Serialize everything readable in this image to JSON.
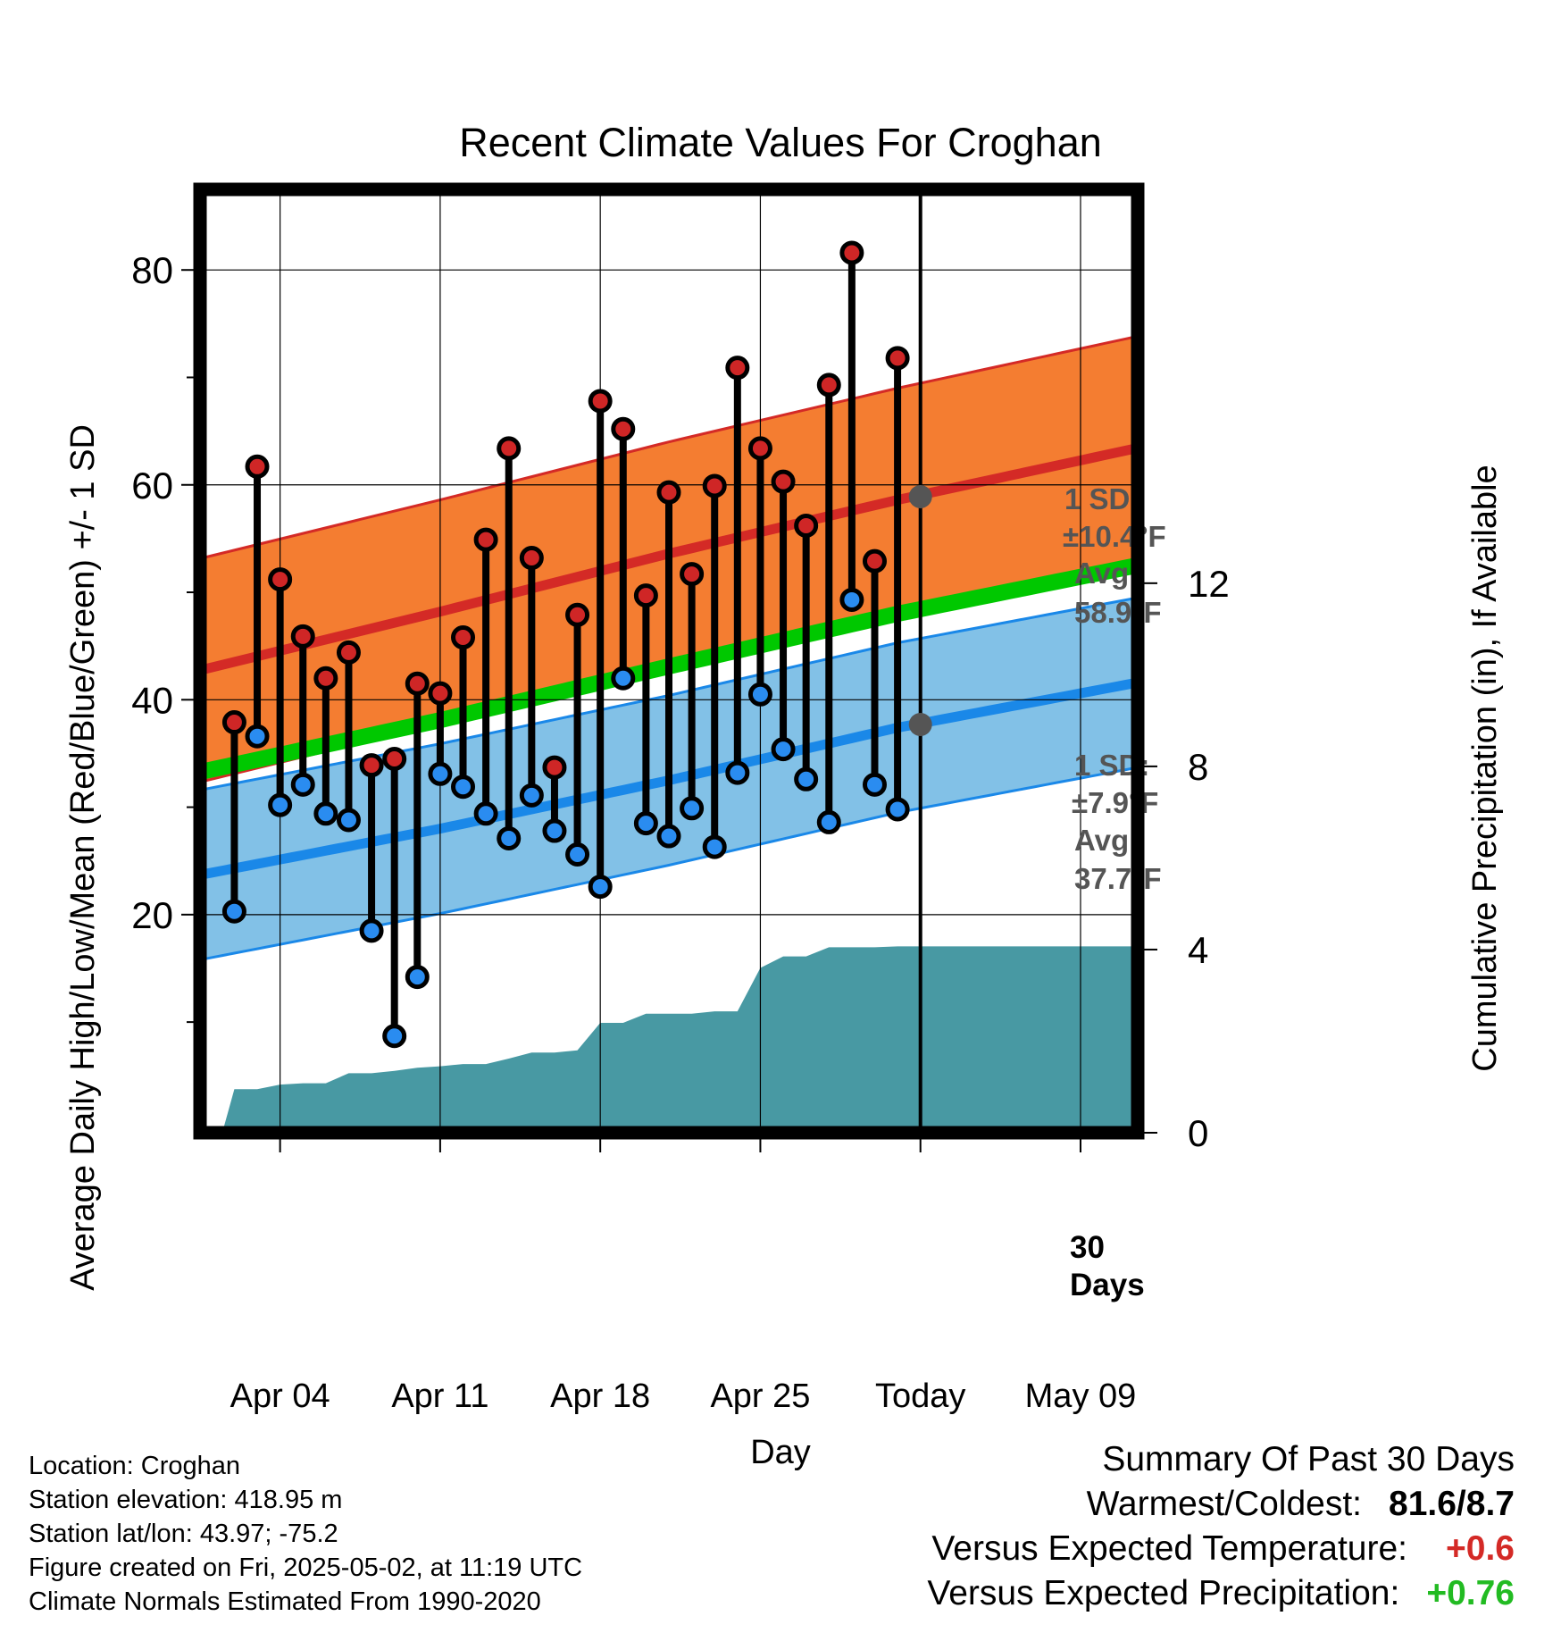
{
  "chart_data": {
    "type": "line",
    "title": "Recent Climate Values For Croghan",
    "xlabel": "Day",
    "ylabel_left": "Average Daily High/Low/Mean (Red/Blue/Green) +/- 1 SD",
    "ylabel_right": "Cumulative Precipitation (in), If Available",
    "x_tick_labels": [
      "Apr 04",
      "Apr 11",
      "Apr 18",
      "Apr 25",
      "Today",
      "May 09"
    ],
    "x_tick_days": [
      "2025-04-04",
      "2025-04-11",
      "2025-04-18",
      "2025-04-25",
      "2025-05-02",
      "2025-05-09"
    ],
    "x_range": [
      "2025-03-31T12:00",
      "2025-05-11T12:00"
    ],
    "today": "2025-05-02",
    "ylim_left": [
      -0.3,
      87.5
    ],
    "yticks_left": [
      20,
      40,
      60,
      80
    ],
    "ylim_right": [
      0,
      20.6
    ],
    "yticks_right": [
      0,
      4,
      8,
      12
    ],
    "grid": true,
    "dates": [
      "2025-04-02",
      "2025-04-03",
      "2025-04-04",
      "2025-04-05",
      "2025-04-06",
      "2025-04-07",
      "2025-04-08",
      "2025-04-09",
      "2025-04-10",
      "2025-04-11",
      "2025-04-12",
      "2025-04-13",
      "2025-04-14",
      "2025-04-15",
      "2025-04-16",
      "2025-04-17",
      "2025-04-18",
      "2025-04-19",
      "2025-04-20",
      "2025-04-21",
      "2025-04-22",
      "2025-04-23",
      "2025-04-24",
      "2025-04-25",
      "2025-04-26",
      "2025-04-27",
      "2025-04-28",
      "2025-04-29",
      "2025-04-30",
      "2025-05-01"
    ],
    "daily_high": [
      37.9,
      61.7,
      51.2,
      45.9,
      42.0,
      44.4,
      33.9,
      34.5,
      41.5,
      40.6,
      45.8,
      54.9,
      63.4,
      53.2,
      33.7,
      47.9,
      67.8,
      65.2,
      49.7,
      59.3,
      51.7,
      59.9,
      70.9,
      63.4,
      60.3,
      56.2,
      69.3,
      81.6,
      52.9,
      71.8
    ],
    "daily_low": [
      20.3,
      36.6,
      30.2,
      32.1,
      29.4,
      28.8,
      18.5,
      8.7,
      14.2,
      33.1,
      31.9,
      29.4,
      27.1,
      31.1,
      27.8,
      25.6,
      22.6,
      42.0,
      28.5,
      27.3,
      29.9,
      26.3,
      33.2,
      40.5,
      35.4,
      32.6,
      28.6,
      49.3,
      32.1,
      29.8
    ],
    "normals_dates": [
      "2025-04-01",
      "2025-04-11",
      "2025-04-21",
      "2025-05-01",
      "2025-05-11"
    ],
    "normal_high": [
      43.0,
      48.2,
      53.6,
      58.6,
      63.2
    ],
    "normal_high_sd": 10.4,
    "normal_low": [
      23.9,
      28.0,
      32.5,
      37.4,
      41.4
    ],
    "normal_low_sd": 7.9,
    "normal_mean": [
      33.5,
      38.1,
      43.1,
      48.0,
      52.3
    ],
    "precip_dates": [
      "2025-03-31T12:00",
      "2025-04-01T12:00",
      "2025-04-02",
      "2025-04-03",
      "2025-04-04",
      "2025-04-05",
      "2025-04-06",
      "2025-04-07",
      "2025-04-08",
      "2025-04-09",
      "2025-04-10",
      "2025-04-11",
      "2025-04-12",
      "2025-04-13",
      "2025-04-14",
      "2025-04-15",
      "2025-04-16",
      "2025-04-17",
      "2025-04-18",
      "2025-04-19",
      "2025-04-20",
      "2025-04-21",
      "2025-04-22",
      "2025-04-23",
      "2025-04-24",
      "2025-04-25",
      "2025-04-26",
      "2025-04-27",
      "2025-04-28",
      "2025-04-29",
      "2025-04-30",
      "2025-05-01",
      "2025-05-02",
      "2025-05-11T12:00"
    ],
    "cumulative_precip": [
      0,
      0.05,
      0.95,
      0.95,
      1.05,
      1.08,
      1.08,
      1.3,
      1.3,
      1.35,
      1.42,
      1.45,
      1.5,
      1.5,
      1.62,
      1.75,
      1.75,
      1.8,
      2.4,
      2.4,
      2.6,
      2.6,
      2.6,
      2.65,
      2.65,
      3.6,
      3.85,
      3.85,
      4.05,
      4.05,
      4.05,
      4.07,
      4.07,
      4.07
    ],
    "annotations": {
      "high": {
        "sd_label": "1 SD:",
        "sd_value": "±10.4°F",
        "avg_label": "Avg:",
        "avg_value": "58.9°F",
        "avg_today": 58.9
      },
      "low": {
        "sd_label": "1 SD:",
        "sd_value": "±7.9°F",
        "avg_label": "Avg:",
        "avg_value": "37.7°F",
        "avg_today": 37.7
      },
      "days": [
        "30",
        "Days"
      ]
    },
    "colors": {
      "high_band": "#f47d31",
      "high_line": "#d42a26",
      "low_band": "#82c1e7",
      "low_line": "#1a88e8",
      "mean_band": "#00c800",
      "precip": "#4899a3",
      "high_dot": "#cf2626",
      "low_dot": "#2a8cf0",
      "annotation": "#555555"
    }
  },
  "info": {
    "location": "Location: Croghan",
    "elevation": "Station elevation: 418.95 m",
    "latlon": "Station lat/lon: 43.97; -75.2",
    "created": "Figure created on Fri, 2025-05-02, at 11:19 UTC",
    "normals": "Climate Normals Estimated From 1990-2020"
  },
  "summary": {
    "title": "Summary Of Past 30 Days",
    "warm_cold_label": "Warmest/Coldest:",
    "warm_cold_value": "81.6/8.7",
    "temp_label": "Versus Expected Temperature:",
    "temp_value": "+0.6",
    "temp_color": "#d42a26",
    "precip_label": "Versus Expected Precipitation:",
    "precip_value": "+0.76",
    "precip_color": "#22bb22"
  }
}
